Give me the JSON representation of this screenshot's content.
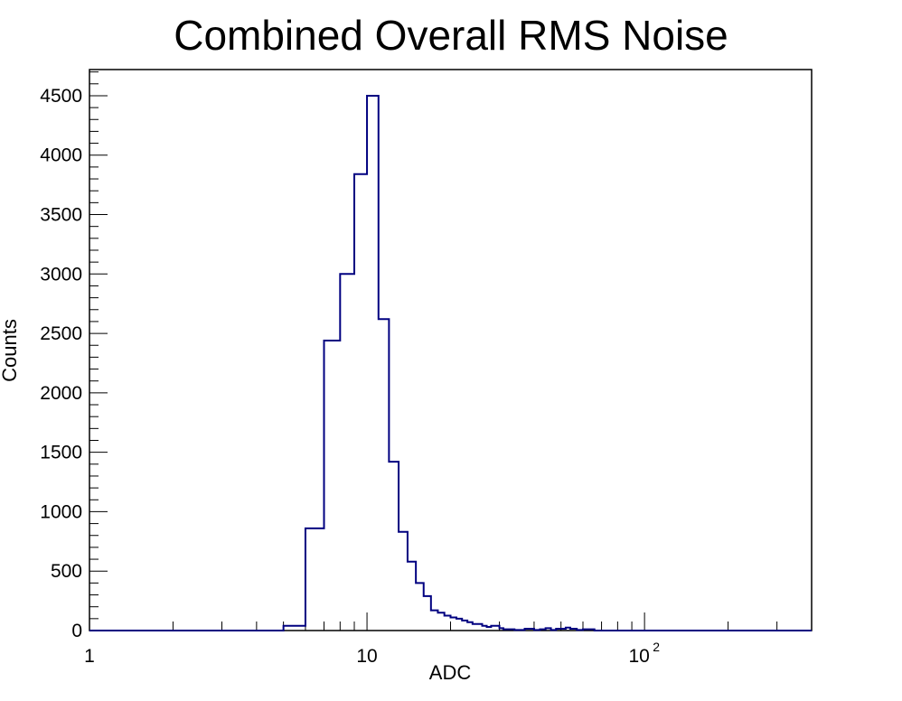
{
  "chart_data": {
    "type": "bar",
    "title": "Combined Overall RMS Noise",
    "xlabel": "ADC",
    "ylabel": "Counts",
    "x_scale": "log",
    "xlim": [
      1,
      400
    ],
    "ylim": [
      0,
      4720
    ],
    "y_ticks": [
      0,
      500,
      1000,
      1500,
      2000,
      2500,
      3000,
      3500,
      4000,
      4500
    ],
    "y_tick_labels": [
      "0",
      "500",
      "1000",
      "1500",
      "2000",
      "2500",
      "3000",
      "3500",
      "4000",
      "4500"
    ],
    "x_major_ticks": [
      1,
      10,
      100
    ],
    "x_tick_labels": [
      {
        "base": "1",
        "exp": ""
      },
      {
        "base": "10",
        "exp": ""
      },
      {
        "base": "10",
        "exp": "2"
      }
    ],
    "grid": false,
    "legend": "none",
    "line_color": "#000080",
    "bins": [
      {
        "x0": 1.0,
        "x1": 5.0,
        "count": 0
      },
      {
        "x0": 5.0,
        "x1": 6.0,
        "count": 40
      },
      {
        "x0": 6.0,
        "x1": 7.0,
        "count": 860
      },
      {
        "x0": 7.0,
        "x1": 8.0,
        "count": 2440
      },
      {
        "x0": 8.0,
        "x1": 9.0,
        "count": 3000
      },
      {
        "x0": 9.0,
        "x1": 10.0,
        "count": 3840
      },
      {
        "x0": 10.0,
        "x1": 11.0,
        "count": 4500
      },
      {
        "x0": 11.0,
        "x1": 12.0,
        "count": 2620
      },
      {
        "x0": 12.0,
        "x1": 13.0,
        "count": 1420
      },
      {
        "x0": 13.0,
        "x1": 14.0,
        "count": 830
      },
      {
        "x0": 14.0,
        "x1": 15.0,
        "count": 580
      },
      {
        "x0": 15.0,
        "x1": 16.0,
        "count": 400
      },
      {
        "x0": 16.0,
        "x1": 17.0,
        "count": 290
      },
      {
        "x0": 17.0,
        "x1": 18.0,
        "count": 170
      },
      {
        "x0": 18.0,
        "x1": 19.0,
        "count": 150
      },
      {
        "x0": 19.0,
        "x1": 20.0,
        "count": 125
      },
      {
        "x0": 20.0,
        "x1": 21.0,
        "count": 110
      },
      {
        "x0": 21.0,
        "x1": 22.0,
        "count": 100
      },
      {
        "x0": 22.0,
        "x1": 23.0,
        "count": 85
      },
      {
        "x0": 23.0,
        "x1": 24.0,
        "count": 70
      },
      {
        "x0": 24.0,
        "x1": 26.0,
        "count": 55
      },
      {
        "x0": 26.0,
        "x1": 27.0,
        "count": 40
      },
      {
        "x0": 27.0,
        "x1": 28.0,
        "count": 30
      },
      {
        "x0": 28.0,
        "x1": 30.0,
        "count": 40
      },
      {
        "x0": 30.0,
        "x1": 31.0,
        "count": 20
      },
      {
        "x0": 31.0,
        "x1": 34.0,
        "count": 10
      },
      {
        "x0": 34.0,
        "x1": 37.0,
        "count": 5
      },
      {
        "x0": 37.0,
        "x1": 40.0,
        "count": 15
      },
      {
        "x0": 40.0,
        "x1": 42.0,
        "count": 5
      },
      {
        "x0": 42.0,
        "x1": 44.0,
        "count": 10
      },
      {
        "x0": 44.0,
        "x1": 46.0,
        "count": 20
      },
      {
        "x0": 46.0,
        "x1": 48.0,
        "count": 5
      },
      {
        "x0": 48.0,
        "x1": 52.0,
        "count": 15
      },
      {
        "x0": 52.0,
        "x1": 54.0,
        "count": 25
      },
      {
        "x0": 54.0,
        "x1": 57.0,
        "count": 15
      },
      {
        "x0": 57.0,
        "x1": 60.0,
        "count": 5
      },
      {
        "x0": 60.0,
        "x1": 66.0,
        "count": 10
      },
      {
        "x0": 66.0,
        "x1": 400.0,
        "count": 0
      }
    ]
  }
}
